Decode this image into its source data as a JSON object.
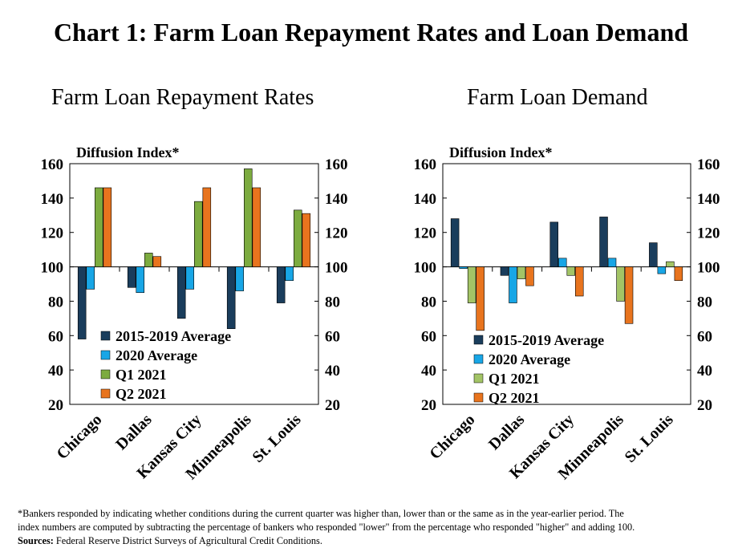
{
  "title": "Chart 1: Farm Loan Repayment Rates and Loan Demand",
  "chart_data": [
    {
      "type": "bar",
      "title": "Farm Loan Repayment Rates",
      "ylabel": "Diffusion Index*",
      "ylim": [
        20,
        160
      ],
      "yticks": [
        20,
        40,
        60,
        80,
        100,
        120,
        140,
        160
      ],
      "baseline": 100,
      "categories": [
        "Chicago",
        "Dallas",
        "Kansas City",
        "Minneapolis",
        "St. Louis"
      ],
      "series": [
        {
          "name": "2015-2019 Average",
          "color": "#1a3d5c",
          "values": [
            58,
            88,
            70,
            64,
            79
          ]
        },
        {
          "name": "2020 Average",
          "color": "#18a6e6",
          "values": [
            87,
            85,
            87,
            86,
            92
          ]
        },
        {
          "name": "Q1 2021",
          "color": "#7cab3f",
          "values": [
            146,
            108,
            138,
            157,
            133
          ]
        },
        {
          "name": "Q2 2021",
          "color": "#e8741e",
          "values": [
            146,
            106,
            146,
            146,
            131
          ]
        }
      ],
      "legend_position": "lower-center",
      "grid": false
    },
    {
      "type": "bar",
      "title": "Farm Loan Demand",
      "ylabel": "Diffusion Index*",
      "ylim": [
        20,
        160
      ],
      "yticks": [
        20,
        40,
        60,
        80,
        100,
        120,
        140,
        160
      ],
      "baseline": 100,
      "categories": [
        "Chicago",
        "Dallas",
        "Kansas City",
        "Minneapolis",
        "St. Louis"
      ],
      "series": [
        {
          "name": "2015-2019 Average",
          "color": "#1a3d5c",
          "values": [
            128,
            95,
            126,
            129,
            114
          ]
        },
        {
          "name": "2020 Average",
          "color": "#18a6e6",
          "values": [
            99,
            79,
            105,
            105,
            96
          ]
        },
        {
          "name": "Q1 2021",
          "color": "#a3c466",
          "values": [
            79,
            93,
            95,
            80,
            103
          ]
        },
        {
          "name": "Q2 2021",
          "color": "#e8741e",
          "values": [
            63,
            89,
            83,
            67,
            92
          ]
        }
      ],
      "legend_position": "lower-center",
      "grid": false
    }
  ],
  "footnote": {
    "line1": "*Bankers responded by indicating  whether conditions during the current quarter was higher than, lower than or the same as in the year-earlier period. The",
    "line2": "index numbers are computed by subtracting the percentage of bankers who responded \"lower\"  from the percentage who responded \"higher\"  and adding 100.",
    "source_label": "Sources:",
    "source_text": " Federal Reserve District Surveys of Agricultural Credit Conditions."
  }
}
